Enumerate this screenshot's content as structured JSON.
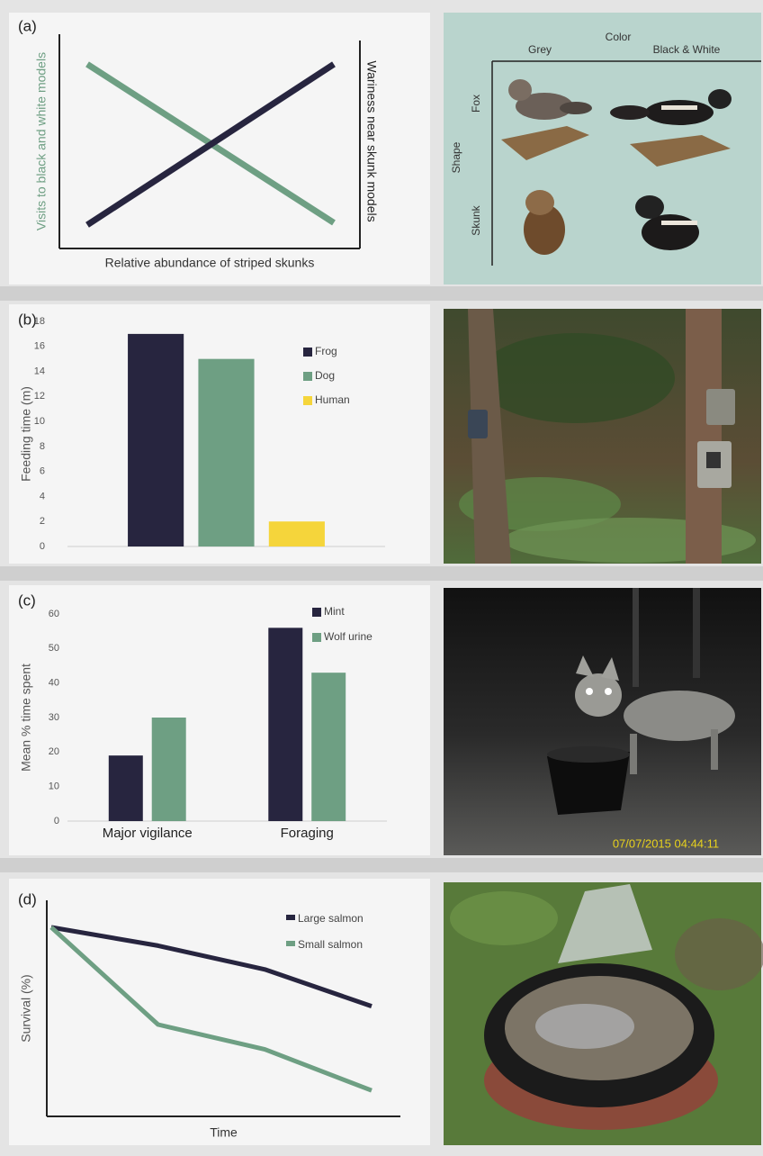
{
  "chart_data": [
    {
      "type": "line",
      "label": "(a)",
      "xlabel": "Relative abundance of striped skunks",
      "ylabel": "Visits to black and white models",
      "ylabel_color": "#6e9f83",
      "y2label": "Wariness near skunk models",
      "categories": [
        null,
        null
      ],
      "ylim": [
        0,
        100
      ],
      "series": [
        {
          "color": "#6e9f83",
          "values": [
            86,
            12
          ]
        },
        {
          "color": "#27253f",
          "values": [
            11,
            86
          ]
        }
      ]
    },
    {
      "type": "bar",
      "label": "(b)",
      "ylabel": "Feeding time (m)",
      "categories": [
        null
      ],
      "ylim": [
        0,
        18
      ],
      "yticks": [
        0,
        2,
        4,
        6,
        8,
        10,
        12,
        14,
        16,
        18
      ],
      "legend": "upper right",
      "series": [
        {
          "name": "Frog",
          "color": "#27253f",
          "values": [
            17
          ]
        },
        {
          "name": "Dog",
          "color": "#6e9f83",
          "values": [
            15
          ]
        },
        {
          "name": "Human",
          "color": "#f5d53b",
          "values": [
            2
          ]
        }
      ]
    },
    {
      "type": "bar",
      "label": "(c)",
      "ylabel": "Mean % time spent",
      "categories": [
        "Major vigilance",
        "Foraging"
      ],
      "ylim": [
        0,
        60
      ],
      "yticks": [
        0,
        10,
        20,
        30,
        40,
        50,
        60
      ],
      "legend": "upper right",
      "series": [
        {
          "name": "Mint",
          "color": "#27253f",
          "values": [
            19,
            56
          ]
        },
        {
          "name": "Wolf urine",
          "color": "#6e9f83",
          "values": [
            30,
            43
          ]
        }
      ]
    },
    {
      "type": "line",
      "label": "(d)",
      "xlabel": "Time",
      "ylabel": "Survival (%)",
      "categories": [
        null,
        null,
        null,
        null
      ],
      "ylim": [
        0,
        100
      ],
      "legend": "upper right",
      "series": [
        {
          "name": "Large salmon",
          "color": "#27253f",
          "values": [
            87.5,
            79,
            68,
            51
          ]
        },
        {
          "name": "Small salmon",
          "color": "#6e9f83",
          "values": [
            87.5,
            42.5,
            31,
            12
          ]
        }
      ]
    }
  ],
  "photos": {
    "a": {
      "color": "Color",
      "columns": [
        "Grey",
        "Black & White"
      ],
      "shape": "Shape",
      "rows": [
        "Fox",
        "Skunk"
      ]
    },
    "c": {
      "timestamp": "07/07/2015 04:44:11"
    }
  }
}
